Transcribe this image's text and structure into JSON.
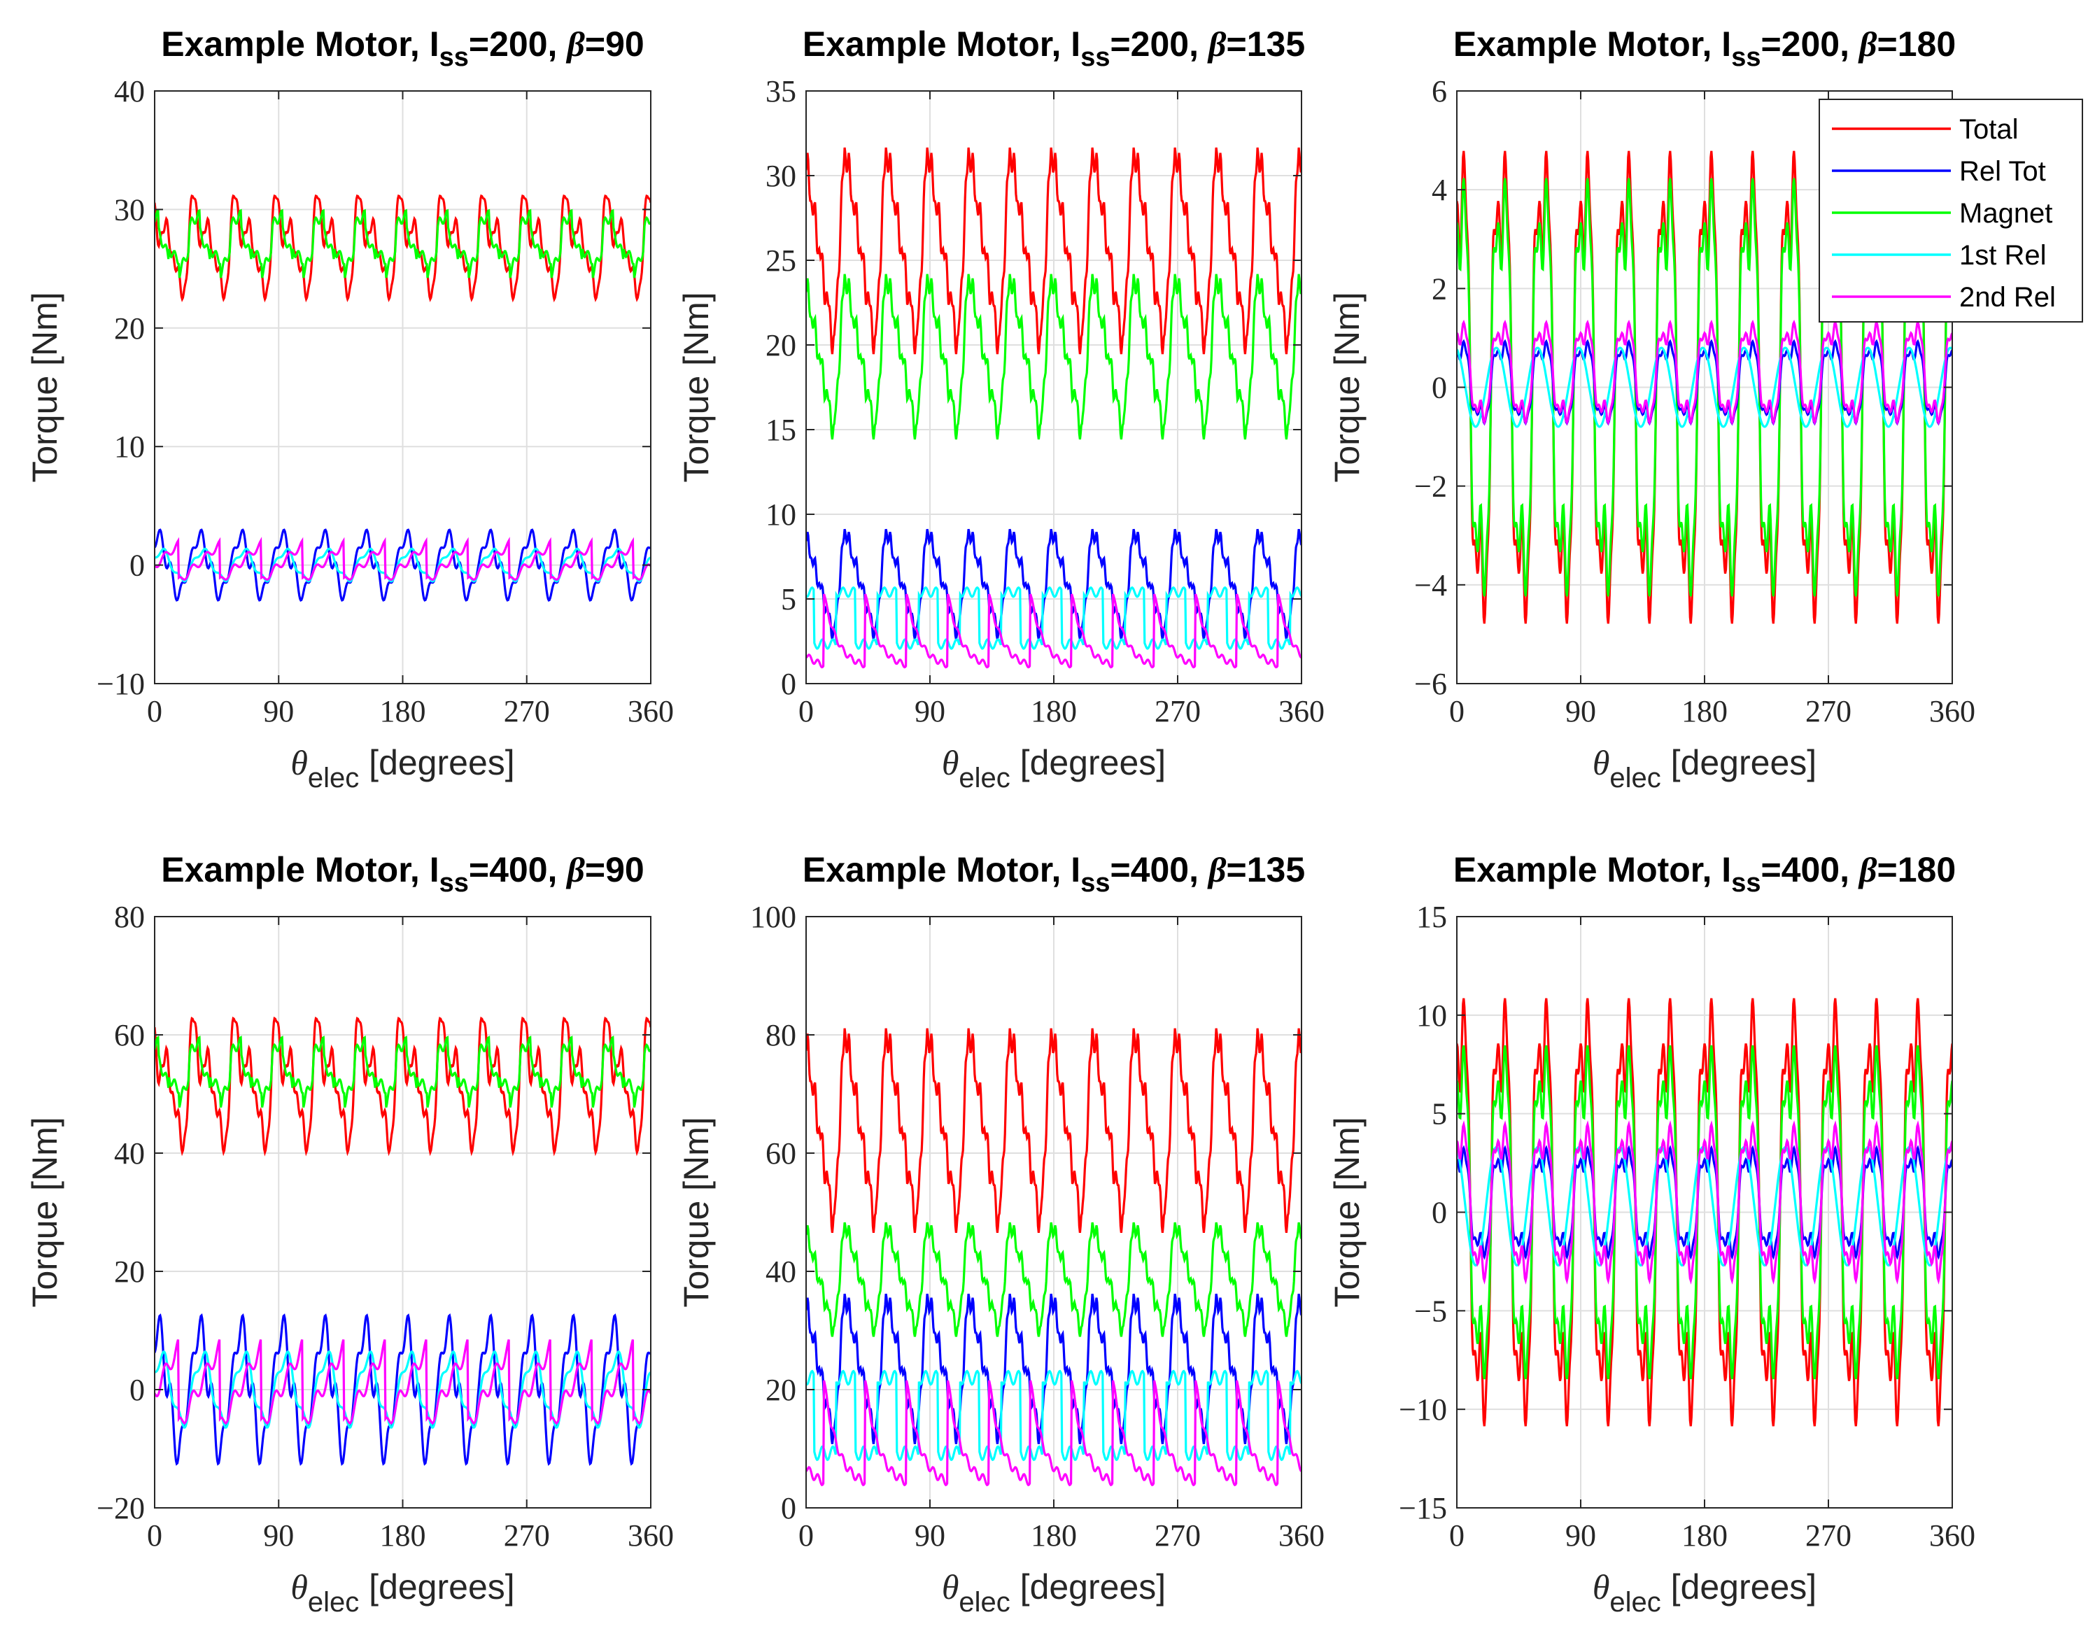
{
  "figure": {
    "legend": {
      "entries": [
        {
          "name": "Total",
          "color": "#ff0000"
        },
        {
          "name": "Rel Tot",
          "color": "#0000ff"
        },
        {
          "name": "Magnet",
          "color": "#00ff00"
        },
        {
          "name": "1st Rel",
          "color": "#00ffff"
        },
        {
          "name": "2nd Rel",
          "color": "#ff00ff"
        }
      ],
      "placement": "top-right of third panel"
    },
    "xlabel": {
      "symbol": "θ",
      "subscript": "elec",
      "text": "[degrees]"
    },
    "ylabel": "Torque [Nm]"
  },
  "chart_data": [
    {
      "type": "line",
      "title": {
        "prefix": "Example Motor, I",
        "subscript": "ss",
        "mid": "=200, ",
        "beta": "β",
        "suffix": "=90"
      },
      "xlim": [
        0,
        360
      ],
      "xticks": [
        0,
        90,
        180,
        270,
        360
      ],
      "ylim": [
        -10,
        40
      ],
      "yticks": [
        -10,
        0,
        10,
        20,
        30,
        40
      ],
      "series_params": [
        {
          "name": "Total",
          "color": "#ff0000",
          "offset": 27.0,
          "amp": 5.0,
          "shape": "total"
        },
        {
          "name": "Rel Tot",
          "color": "#0000ff",
          "offset": 0.0,
          "amp": 3.2,
          "shape": "rel"
        },
        {
          "name": "Magnet",
          "color": "#00ff00",
          "offset": 27.0,
          "amp": 3.6,
          "shape": "mag"
        },
        {
          "name": "1st Rel",
          "color": "#00ffff",
          "offset": 0.0,
          "amp": 1.5,
          "shape": "first"
        },
        {
          "name": "2nd Rel",
          "color": "#ff00ff",
          "offset": 0.2,
          "amp": 2.2,
          "shape": "second"
        }
      ]
    },
    {
      "type": "line",
      "title": {
        "prefix": "Example Motor, I",
        "subscript": "ss",
        "mid": "=200, ",
        "beta": "β",
        "suffix": "=135"
      },
      "xlim": [
        0,
        360
      ],
      "xticks": [
        0,
        90,
        180,
        270,
        360
      ],
      "ylim": [
        0,
        35
      ],
      "yticks": [
        0,
        5,
        10,
        15,
        20,
        25,
        30,
        35
      ],
      "series_params": [
        {
          "name": "Total",
          "color": "#ff0000",
          "offset": 25.8,
          "amp": 6.0,
          "shape": "saw"
        },
        {
          "name": "Rel Tot",
          "color": "#0000ff",
          "offset": 6.0,
          "amp": 3.2,
          "shape": "saw"
        },
        {
          "name": "Magnet",
          "color": "#00ff00",
          "offset": 19.5,
          "amp": 4.8,
          "shape": "saw"
        },
        {
          "name": "1st Rel",
          "color": "#00ffff",
          "offset": 3.6,
          "amp": 1.8,
          "shape": "step"
        },
        {
          "name": "2nd Rel",
          "color": "#ff00ff",
          "offset": 3.2,
          "amp": 2.2,
          "shape": "decay"
        }
      ]
    },
    {
      "type": "line",
      "title": {
        "prefix": "Example Motor, I",
        "subscript": "ss",
        "mid": "=200, ",
        "beta": "β",
        "suffix": "=180"
      },
      "xlim": [
        0,
        360
      ],
      "xticks": [
        0,
        90,
        180,
        270,
        360
      ],
      "ylim": [
        -6,
        6
      ],
      "yticks": [
        -6,
        -4,
        -2,
        0,
        2,
        4,
        6
      ],
      "series_params": [
        {
          "name": "Total",
          "color": "#ff0000",
          "offset": 0.0,
          "amp": 5.2,
          "shape": "osc"
        },
        {
          "name": "Rel Tot",
          "color": "#0000ff",
          "offset": 0.1,
          "amp": 0.9,
          "shape": "osc"
        },
        {
          "name": "Magnet",
          "color": "#00ff00",
          "offset": 0.0,
          "amp": 4.6,
          "shape": "osc"
        },
        {
          "name": "1st Rel",
          "color": "#00ffff",
          "offset": 0.0,
          "amp": 0.8,
          "shape": "sine"
        },
        {
          "name": "2nd Rel",
          "color": "#ff00ff",
          "offset": 0.3,
          "amp": 1.1,
          "shape": "osc"
        }
      ]
    },
    {
      "type": "line",
      "title": {
        "prefix": "Example Motor, I",
        "subscript": "ss",
        "mid": "=400, ",
        "beta": "β",
        "suffix": "=90"
      },
      "xlim": [
        0,
        360
      ],
      "xticks": [
        0,
        90,
        180,
        270,
        360
      ],
      "ylim": [
        -20,
        80
      ],
      "yticks": [
        -20,
        0,
        20,
        40,
        60,
        80
      ],
      "series_params": [
        {
          "name": "Total",
          "color": "#ff0000",
          "offset": 52.0,
          "amp": 13.0,
          "shape": "total"
        },
        {
          "name": "Rel Tot",
          "color": "#0000ff",
          "offset": 0.0,
          "amp": 13.5,
          "shape": "rel"
        },
        {
          "name": "Magnet",
          "color": "#00ff00",
          "offset": 53.5,
          "amp": 7.5,
          "shape": "mag"
        },
        {
          "name": "1st Rel",
          "color": "#00ffff",
          "offset": 0.0,
          "amp": 7.0,
          "shape": "first"
        },
        {
          "name": "2nd Rel",
          "color": "#ff00ff",
          "offset": 0.5,
          "amp": 9.5,
          "shape": "second"
        }
      ]
    },
    {
      "type": "line",
      "title": {
        "prefix": "Example Motor, I",
        "subscript": "ss",
        "mid": "=400, ",
        "beta": "β",
        "suffix": "=135"
      },
      "xlim": [
        0,
        360
      ],
      "xticks": [
        0,
        90,
        180,
        270,
        360
      ],
      "ylim": [
        0,
        100
      ],
      "yticks": [
        0,
        20,
        40,
        60,
        80,
        100
      ],
      "series_params": [
        {
          "name": "Total",
          "color": "#ff0000",
          "offset": 64.5,
          "amp": 17.0,
          "shape": "saw"
        },
        {
          "name": "Rel Tot",
          "color": "#0000ff",
          "offset": 24.0,
          "amp": 12.5,
          "shape": "saw"
        },
        {
          "name": "Magnet",
          "color": "#00ff00",
          "offset": 39.0,
          "amp": 9.5,
          "shape": "saw"
        },
        {
          "name": "1st Rel",
          "color": "#00ffff",
          "offset": 14.5,
          "amp": 7.5,
          "shape": "step"
        },
        {
          "name": "2nd Rel",
          "color": "#ff00ff",
          "offset": 13.0,
          "amp": 9.0,
          "shape": "decay"
        }
      ]
    },
    {
      "type": "line",
      "title": {
        "prefix": "Example Motor, I",
        "subscript": "ss",
        "mid": "=400, ",
        "beta": "β",
        "suffix": "=180"
      },
      "xlim": [
        0,
        360
      ],
      "xticks": [
        0,
        90,
        180,
        270,
        360
      ],
      "ylim": [
        -15,
        15
      ],
      "yticks": [
        -15,
        -10,
        -5,
        0,
        5,
        10,
        15
      ],
      "series_params": [
        {
          "name": "Total",
          "color": "#ff0000",
          "offset": 0.0,
          "amp": 11.8,
          "shape": "osc"
        },
        {
          "name": "Rel Tot",
          "color": "#0000ff",
          "offset": 0.5,
          "amp": 3.0,
          "shape": "osc"
        },
        {
          "name": "Magnet",
          "color": "#00ff00",
          "offset": 0.0,
          "amp": 9.2,
          "shape": "osc"
        },
        {
          "name": "1st Rel",
          "color": "#00ffff",
          "offset": 0.3,
          "amp": 3.0,
          "shape": "sine"
        },
        {
          "name": "2nd Rel",
          "color": "#ff00ff",
          "offset": 0.5,
          "amp": 4.3,
          "shape": "osc"
        }
      ]
    }
  ]
}
